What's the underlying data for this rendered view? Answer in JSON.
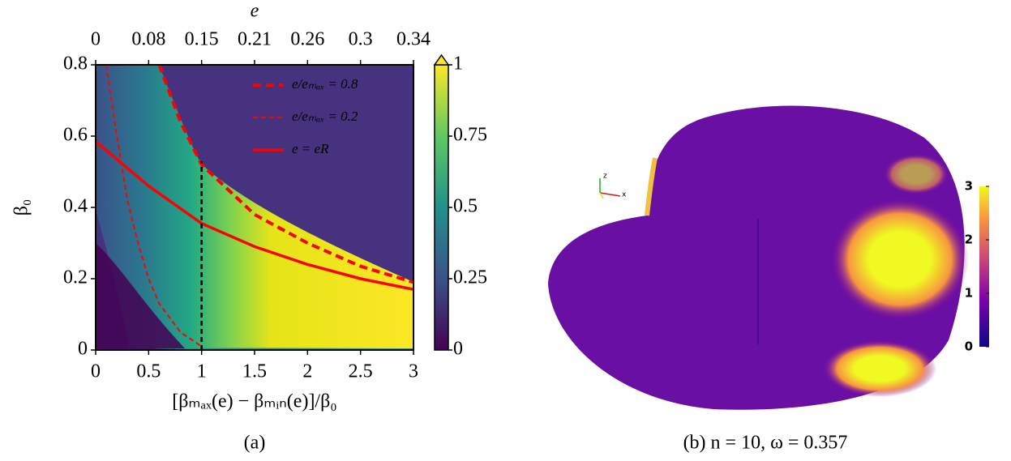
{
  "chart_data": [
    {
      "type": "heatmap",
      "x2label": "e",
      "ylabel": "β₀",
      "xlabel": "[βₘₐₓ(e) − βₘᵢₙ(e)]/β₀",
      "caption": "(a)",
      "xlim": [
        0,
        3
      ],
      "ylim": [
        0,
        0.8
      ],
      "xticks": [
        0,
        0.5,
        1,
        1.5,
        2,
        2.5,
        3
      ],
      "yticks": [
        0,
        0.2,
        0.4,
        0.6,
        0.8
      ],
      "x2ticks": [
        0,
        0.08,
        0.15,
        0.21,
        0.26,
        0.3,
        0.34
      ],
      "legend": "upper right",
      "colorbar": {
        "lim": [
          0,
          1
        ],
        "ticks": [
          0,
          0.25,
          0.5,
          0.75,
          1
        ]
      },
      "series": [
        {
          "name": "e/eₘₐₓ = 0.8",
          "color": "#ff0000",
          "style": "dashed-thick",
          "x": [
            0.6,
            0.8,
            1,
            1.5,
            2,
            2.5,
            3
          ],
          "values": [
            0.8,
            0.64,
            0.52,
            0.38,
            0.3,
            0.235,
            0.19
          ]
        },
        {
          "name": "e/eₘₐₓ = 0.2",
          "color": "#ff0000",
          "style": "dashed-thin",
          "x": [
            0.1,
            0.2,
            0.3,
            0.4,
            0.5,
            0.6,
            0.8,
            1
          ],
          "values": [
            0.8,
            0.6,
            0.42,
            0.3,
            0.2,
            0.13,
            0.05,
            0.01
          ]
        },
        {
          "name": "e = eR",
          "color": "#ff0000",
          "style": "solid",
          "x": [
            0,
            0.5,
            1,
            1.5,
            2,
            2.5,
            3
          ],
          "values": [
            0.585,
            0.46,
            0.355,
            0.29,
            0.24,
            0.2,
            0.17
          ]
        },
        {
          "color": "#000000",
          "style": "dashed-black",
          "x": [
            1,
            1
          ],
          "values": [
            0,
            0.53
          ]
        }
      ]
    },
    {
      "type": "surface",
      "caption": "(b) n = 10, ω = 0.357",
      "axes_labels": [
        "z",
        "x"
      ],
      "colorbar": {
        "lim": [
          0,
          3
        ],
        "ticks": [
          0,
          1,
          2,
          3
        ]
      }
    }
  ]
}
